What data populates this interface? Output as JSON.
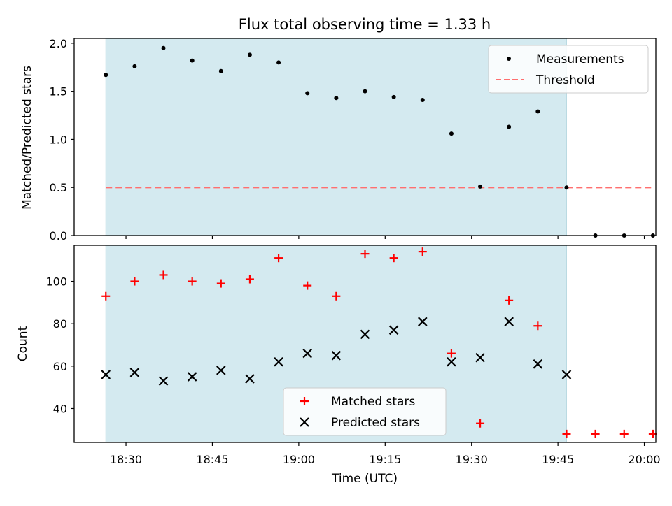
{
  "chart_data": [
    {
      "type": "scatter",
      "title": "Flux total observing time = 1.33 h",
      "ylabel": "Matched/Predicted stars",
      "xlabel": "",
      "xlim": [
        "18:21",
        "20:02"
      ],
      "ylim": [
        0,
        2.05
      ],
      "yticks": [
        "0.0",
        "0.5",
        "1.0",
        "1.5",
        "2.0"
      ],
      "x": [
        "18:26:30",
        "18:31:30",
        "18:36:30",
        "18:41:30",
        "18:46:30",
        "18:51:30",
        "18:56:30",
        "19:01:30",
        "19:06:30",
        "19:11:30",
        "19:16:30",
        "19:21:30",
        "19:26:30",
        "19:31:30",
        "19:36:30",
        "19:41:30",
        "19:46:30",
        "19:51:30",
        "19:56:30",
        "20:01:30"
      ],
      "series": [
        {
          "name": "Measurements",
          "color": "#000000",
          "marker": "dot",
          "values": [
            1.67,
            1.76,
            1.95,
            1.82,
            1.71,
            1.88,
            1.8,
            1.48,
            1.43,
            1.5,
            1.44,
            1.41,
            1.06,
            0.51,
            1.13,
            1.29,
            0.5,
            0.0,
            0.0,
            0.0
          ]
        },
        {
          "name": "Threshold",
          "color": "#ff6f6f",
          "style": "dashed",
          "x": [
            "18:26:30",
            "20:01:30"
          ],
          "values": [
            0.5,
            0.5
          ]
        }
      ],
      "shaded_span": {
        "from": "18:26:30",
        "to": "19:46:30",
        "color": "#d4eaf0"
      },
      "legend": "top-right"
    },
    {
      "type": "scatter",
      "title": "",
      "ylabel": "Count",
      "xlabel": "Time (UTC)",
      "xlim": [
        "18:21",
        "20:02"
      ],
      "ylim": [
        24,
        117
      ],
      "yticks": [
        "40",
        "60",
        "80",
        "100"
      ],
      "xticks": [
        "18:30",
        "18:45",
        "19:00",
        "19:15",
        "19:30",
        "19:45",
        "20:00"
      ],
      "x": [
        "18:26:30",
        "18:31:30",
        "18:36:30",
        "18:41:30",
        "18:46:30",
        "18:51:30",
        "18:56:30",
        "19:01:30",
        "19:06:30",
        "19:11:30",
        "19:16:30",
        "19:21:30",
        "19:26:30",
        "19:31:30",
        "19:36:30",
        "19:41:30",
        "19:46:30",
        "19:51:30",
        "19:56:30",
        "20:01:30"
      ],
      "series": [
        {
          "name": "Matched stars",
          "color": "#ff0000",
          "marker": "plus",
          "values": [
            93,
            100,
            103,
            100,
            99,
            101,
            111,
            98,
            93,
            113,
            111,
            114,
            66,
            33,
            91,
            79,
            28,
            28,
            28,
            28
          ]
        },
        {
          "name": "Predicted stars",
          "color": "#000000",
          "marker": "x",
          "values": [
            56,
            57,
            53,
            55,
            58,
            54,
            62,
            66,
            65,
            75,
            77,
            81,
            62,
            64,
            81,
            61,
            56,
            null,
            null,
            null
          ]
        }
      ],
      "shaded_span": {
        "from": "18:26:30",
        "to": "19:46:30",
        "color": "#d4eaf0"
      },
      "legend": "lower-center"
    }
  ]
}
